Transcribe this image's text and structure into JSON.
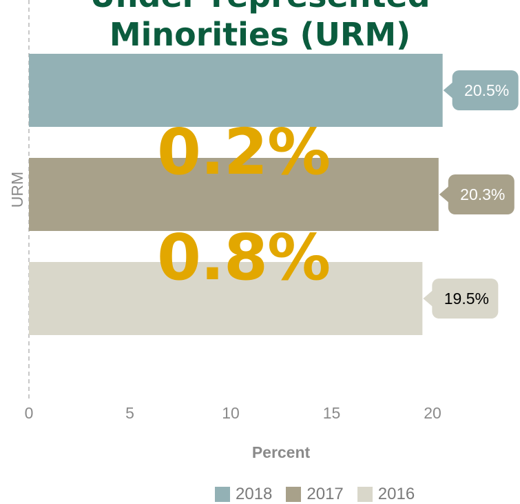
{
  "title_lines": [
    "Under-represented",
    "Minorities (URM)"
  ],
  "callouts": [
    "0.2%",
    "0.8%"
  ],
  "colors": {
    "title": "#0b5c3e",
    "callout": "#e2a700",
    "axis_text": "#8a8a8a"
  },
  "chart_data": {
    "type": "bar",
    "orientation": "horizontal",
    "categories": [
      "URM"
    ],
    "series": [
      {
        "name": "2018",
        "values": [
          20.5
        ],
        "label": "20.5%",
        "color": "#93b1b5",
        "label_color": "#ffffff"
      },
      {
        "name": "2017",
        "values": [
          20.3
        ],
        "label": "20.3%",
        "color": "#a8a18a",
        "label_color": "#ffffff"
      },
      {
        "name": "2016",
        "values": [
          19.5
        ],
        "label": "19.5%",
        "color": "#d9d7ca",
        "label_color": "#000000"
      }
    ],
    "xlabel": "Percent",
    "ylabel": "URM",
    "xlim": [
      0,
      20.5
    ],
    "xticks": [
      "0",
      "5",
      "10",
      "15",
      "20"
    ],
    "legend_position": "bottom",
    "grid": false
  }
}
